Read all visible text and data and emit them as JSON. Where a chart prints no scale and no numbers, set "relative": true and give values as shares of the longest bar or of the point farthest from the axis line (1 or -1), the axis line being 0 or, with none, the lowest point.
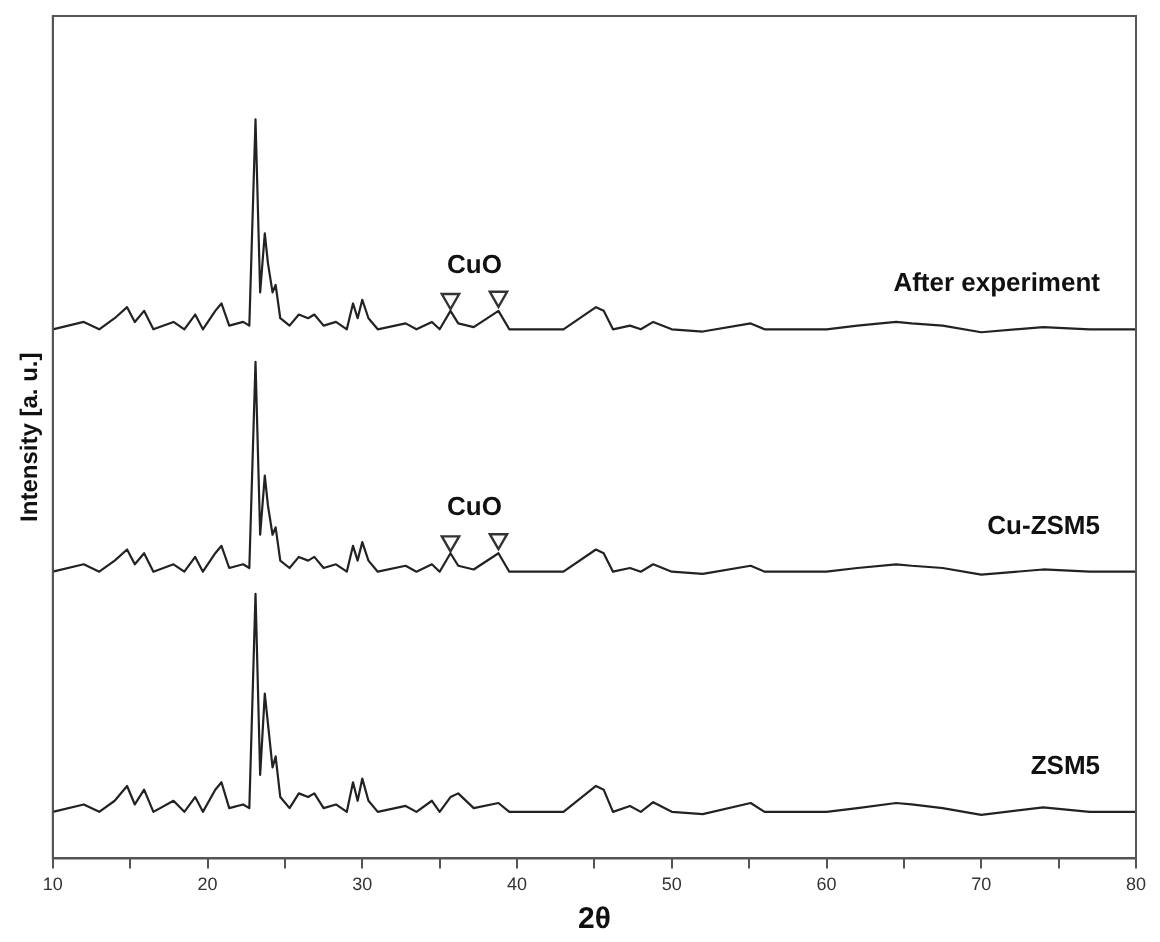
{
  "chart_data": {
    "type": "line",
    "xlabel": "2θ",
    "ylabel": "Intensity [a. u.]",
    "relative": true,
    "grid": false,
    "legend": false,
    "marker": "none",
    "line_style": "solid",
    "xlim": [
      10,
      80
    ],
    "xticks": [
      10,
      {
        "value": 15,
        "label": null
      },
      20,
      {
        "value": 25,
        "label": null
      },
      30,
      {
        "value": 35,
        "label": null
      },
      40,
      {
        "value": 45,
        "label": null
      },
      50,
      {
        "value": 55,
        "label": null
      },
      60,
      {
        "value": 65,
        "label": null
      },
      70,
      {
        "value": 75,
        "label": null
      },
      80
    ],
    "x": [
      10,
      12,
      13,
      14,
      14.8,
      15.3,
      15.9,
      16.5,
      17.8,
      18.5,
      19.2,
      19.7,
      20.5,
      20.9,
      21.4,
      22.3,
      22.7,
      23.1,
      23.4,
      23.7,
      23.9,
      24.2,
      24.4,
      24.7,
      25.3,
      25.9,
      26.5,
      26.9,
      27.5,
      28.3,
      29,
      29.4,
      29.7,
      30,
      30.4,
      31,
      32.8,
      33.5,
      34.5,
      35,
      35.7,
      36.2,
      37.2,
      38.8,
      39.5,
      41,
      43,
      45.1,
      45.6,
      46.2,
      47.3,
      48,
      48.8,
      50,
      52,
      55.1,
      56,
      60,
      62,
      64.5,
      65.5,
      67.5,
      70,
      74,
      77,
      80
    ],
    "series": [
      {
        "name": "After experiment",
        "color": "#222222",
        "values": [
          0.716,
          0.726,
          0.716,
          0.731,
          0.746,
          0.726,
          0.741,
          0.716,
          0.726,
          0.716,
          0.736,
          0.716,
          0.741,
          0.751,
          0.721,
          0.726,
          0.721,
          1,
          0.766,
          0.846,
          0.806,
          0.766,
          0.776,
          0.731,
          0.721,
          0.736,
          0.731,
          0.736,
          0.721,
          0.726,
          0.716,
          0.751,
          0.731,
          0.756,
          0.731,
          0.716,
          0.724,
          0.716,
          0.726,
          0.716,
          0.741,
          0.724,
          0.719,
          0.741,
          0.716,
          0.716,
          0.716,
          0.746,
          0.741,
          0.716,
          0.721,
          0.716,
          0.726,
          0.716,
          0.713,
          0.724,
          0.716,
          0.716,
          0.721,
          0.726,
          0.724,
          0.721,
          0.712,
          0.719,
          0.716,
          0.716
        ]
      },
      {
        "name": "Cu-ZSM5",
        "color": "#222222",
        "values": [
          0.388,
          0.398,
          0.388,
          0.403,
          0.418,
          0.398,
          0.413,
          0.388,
          0.398,
          0.388,
          0.408,
          0.388,
          0.413,
          0.423,
          0.393,
          0.398,
          0.393,
          0.672,
          0.438,
          0.518,
          0.478,
          0.438,
          0.448,
          0.403,
          0.393,
          0.408,
          0.403,
          0.408,
          0.393,
          0.398,
          0.388,
          0.423,
          0.403,
          0.428,
          0.403,
          0.388,
          0.396,
          0.388,
          0.398,
          0.388,
          0.413,
          0.396,
          0.391,
          0.413,
          0.388,
          0.388,
          0.388,
          0.418,
          0.413,
          0.388,
          0.393,
          0.388,
          0.398,
          0.388,
          0.385,
          0.396,
          0.388,
          0.388,
          0.393,
          0.398,
          0.396,
          0.393,
          0.384,
          0.391,
          0.388,
          0.388
        ]
      },
      {
        "name": "ZSM5",
        "color": "#222222",
        "values": [
          0.063,
          0.073,
          0.063,
          0.078,
          0.098,
          0.073,
          0.093,
          0.063,
          0.078,
          0.063,
          0.083,
          0.063,
          0.093,
          0.103,
          0.068,
          0.073,
          0.068,
          0.358,
          0.113,
          0.223,
          0.183,
          0.123,
          0.138,
          0.083,
          0.068,
          0.088,
          0.083,
          0.088,
          0.068,
          0.073,
          0.063,
          0.103,
          0.078,
          0.108,
          0.078,
          0.063,
          0.071,
          0.063,
          0.078,
          0.063,
          0.083,
          0.088,
          0.068,
          0.075,
          0.063,
          0.063,
          0.063,
          0.098,
          0.093,
          0.063,
          0.071,
          0.063,
          0.076,
          0.063,
          0.06,
          0.075,
          0.063,
          0.063,
          0.068,
          0.075,
          0.073,
          0.068,
          0.059,
          0.069,
          0.063,
          0.063
        ]
      },
      {
        "type": "scatter",
        "marker": "triangle",
        "color": "#333333",
        "values": [
          null,
          null,
          null,
          null,
          null,
          null,
          null,
          null,
          null,
          null,
          null,
          null,
          null,
          null,
          null,
          null,
          null,
          null,
          null,
          null,
          null,
          null,
          null,
          null,
          null,
          null,
          null,
          null,
          null,
          null,
          null,
          null,
          null,
          null,
          null,
          null,
          null,
          null,
          null,
          null,
          0.757,
          null,
          null,
          0.76,
          null,
          null,
          null,
          null,
          null,
          null,
          null,
          null,
          null,
          null,
          null,
          null,
          null,
          null,
          null,
          null,
          null,
          null,
          null,
          null,
          null,
          null
        ]
      },
      {
        "type": "scatter",
        "marker": "triangle",
        "color": "#333333",
        "values": [
          null,
          null,
          null,
          null,
          null,
          null,
          null,
          null,
          null,
          null,
          null,
          null,
          null,
          null,
          null,
          null,
          null,
          null,
          null,
          null,
          null,
          null,
          null,
          null,
          null,
          null,
          null,
          null,
          null,
          null,
          null,
          null,
          null,
          null,
          null,
          null,
          null,
          null,
          null,
          null,
          0.429,
          null,
          null,
          0.432,
          null,
          null,
          null,
          null,
          null,
          null,
          null,
          null,
          null,
          null,
          null,
          null,
          null,
          null,
          null,
          null,
          null,
          null,
          null,
          null,
          null,
          null
        ]
      }
    ],
    "annotations": [
      "CuO",
      "CuO"
    ]
  }
}
